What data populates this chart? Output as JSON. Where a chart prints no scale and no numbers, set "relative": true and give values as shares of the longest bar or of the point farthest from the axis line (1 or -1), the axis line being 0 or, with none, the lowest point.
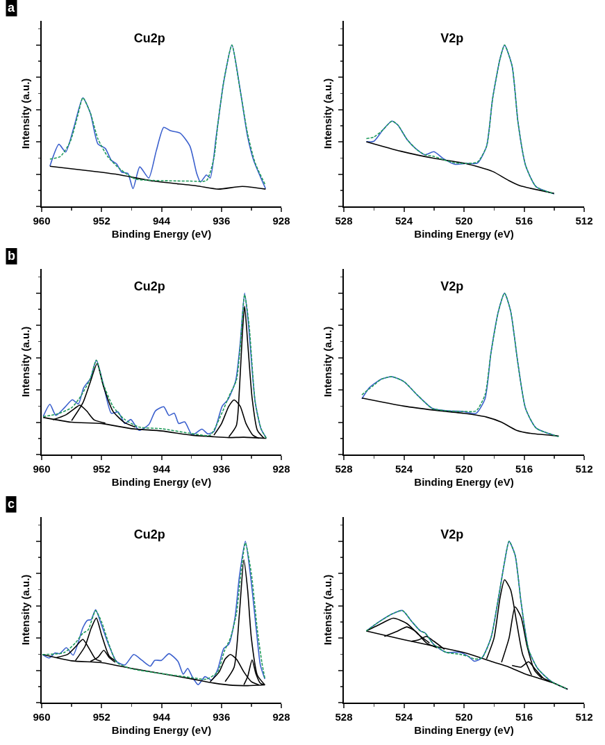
{
  "chart_data": [
    {
      "type": "line",
      "title": "Cu2p",
      "xlabel": "Binding Energy (eV)",
      "ylabel": "Intensity (a.u.)",
      "annotations": [
        "a"
      ],
      "relative": true,
      "xlim": [
        960,
        928
      ],
      "xticks": [
        960,
        952,
        944,
        936,
        928
      ],
      "tick_labels": "x",
      "grid": false,
      "marker": "none",
      "series": [
        {
          "color": "#3a5fcd",
          "x": [
            958.9,
            957.7,
            956.8,
            955.7,
            954.5,
            953.5,
            952.5,
            951.5,
            950.7,
            950.0,
            949.3,
            948.5,
            947.8,
            946.9,
            945.7,
            944.7,
            943.7,
            942.8,
            941.5,
            940.2,
            939.3,
            938.8,
            938.0,
            937.5,
            936.7,
            935.7,
            934.6,
            933.5,
            932.5,
            931.7,
            930.1
          ],
          "values": [
            0.25,
            0.385,
            0.337,
            0.49,
            0.673,
            0.578,
            0.388,
            0.359,
            0.286,
            0.264,
            0.212,
            0.205,
            0.11,
            0.245,
            0.176,
            0.344,
            0.49,
            0.469,
            0.454,
            0.373,
            0.205,
            0.151,
            0.195,
            0.176,
            0.432,
            0.769,
            1,
            0.725,
            0.432,
            0.286,
            0.11
          ]
        },
        {
          "color": "#1e9a5a",
          "line_style": "dashed",
          "x": [
            958.9,
            957.5,
            956.2,
            955.2,
            954.5,
            953.5,
            952.5,
            951.2,
            949.5,
            947.5,
            945.1,
            940.2,
            938.0,
            937.0,
            936.5,
            935.7,
            934.6,
            933.5,
            932.5,
            931.5,
            930.1
          ],
          "values": [
            0.293,
            0.31,
            0.4,
            0.56,
            0.673,
            0.58,
            0.42,
            0.31,
            0.23,
            0.17,
            0.161,
            0.157,
            0.16,
            0.3,
            0.5,
            0.77,
            1,
            0.72,
            0.45,
            0.27,
            0.13
          ]
        },
        {
          "color": "#000000",
          "x": [
            958.9,
            954.1,
            949.9,
            945.1,
            939.3,
            936.4,
            933.2,
            930.1
          ],
          "values": [
            0.249,
            0.223,
            0.198,
            0.157,
            0.127,
            0.107,
            0.124,
            0.107
          ]
        }
      ]
    },
    {
      "type": "line",
      "title": "V2p",
      "xlabel": "Binding Energy (eV)",
      "ylabel": "Intensity (a.u.)",
      "relative": true,
      "xlim": [
        528,
        512
      ],
      "xticks": [
        528,
        524,
        520,
        516,
        512
      ],
      "tick_labels": "x",
      "grid": false,
      "marker": "none",
      "series": [
        {
          "color": "#3a5fcd",
          "x": [
            526.5,
            526.0,
            525.4,
            524.8,
            524.4,
            523.8,
            523.2,
            522.6,
            522.0,
            521.4,
            520.6,
            519.9,
            519.1,
            518.5,
            518.1,
            517.6,
            517.3,
            516.8,
            516.4,
            515.9,
            515.2,
            514.0
          ],
          "values": [
            0.401,
            0.404,
            0.474,
            0.529,
            0.504,
            0.416,
            0.357,
            0.32,
            0.339,
            0.298,
            0.261,
            0.266,
            0.269,
            0.372,
            0.665,
            0.915,
            1,
            0.871,
            0.518,
            0.254,
            0.122,
            0.078
          ]
        },
        {
          "color": "#1e9a5a",
          "line_style": "dashed",
          "x": [
            526.5,
            526.0,
            525.4,
            524.8,
            524.4,
            523.8,
            523.2,
            522.6,
            522.0,
            521.4,
            520.6,
            519.9,
            519.1,
            518.5,
            518.1,
            517.6,
            517.3,
            516.8,
            516.4,
            515.9,
            515.2,
            514.0
          ],
          "values": [
            0.42,
            0.43,
            0.474,
            0.529,
            0.504,
            0.416,
            0.357,
            0.32,
            0.31,
            0.29,
            0.27,
            0.266,
            0.275,
            0.372,
            0.665,
            0.915,
            1,
            0.871,
            0.518,
            0.254,
            0.122,
            0.078
          ]
        },
        {
          "color": "#000000",
          "x": [
            526.5,
            524.2,
            522.0,
            519.9,
            518.1,
            517.0,
            516.3,
            514.0
          ],
          "values": [
            0.401,
            0.342,
            0.298,
            0.266,
            0.217,
            0.159,
            0.129,
            0.081
          ]
        }
      ]
    },
    {
      "type": "line",
      "title": "Cu2p",
      "xlabel": "Binding Energy (eV)",
      "ylabel": "Intensity (a.u.)",
      "annotations": [
        "b"
      ],
      "relative": true,
      "xlim": [
        960,
        928
      ],
      "xticks": [
        960,
        952,
        944,
        936,
        928
      ],
      "tick_labels": "x",
      "grid": false,
      "marker": "none",
      "series": [
        {
          "color": "#3a5fcd",
          "x": [
            959.8,
            958.9,
            958.1,
            957.0,
            955.9,
            955.1,
            954.4,
            953.5,
            952.7,
            951.8,
            950.7,
            949.8,
            948.9,
            948.1,
            947.0,
            945.7,
            944.8,
            943.7,
            943.0,
            942.3,
            941.7,
            940.9,
            939.9,
            938.6,
            937.8,
            937.0,
            935.9,
            935.1,
            934.1,
            933.5,
            932.9,
            932.4,
            931.5,
            930.7,
            930.0
          ],
          "values": [
            0.235,
            0.311,
            0.242,
            0.288,
            0.339,
            0.313,
            0.413,
            0.47,
            0.584,
            0.442,
            0.256,
            0.264,
            0.192,
            0.217,
            0.15,
            0.185,
            0.271,
            0.296,
            0.242,
            0.256,
            0.192,
            0.202,
            0.121,
            0.157,
            0.128,
            0.142,
            0.299,
            0.342,
            0.456,
            0.684,
            1,
            0.812,
            0.328,
            0.157,
            0.103
          ]
        },
        {
          "color": "#1e9a5a",
          "line_style": "dashed",
          "x": [
            959.8,
            958.0,
            956.0,
            954.8,
            953.5,
            952.7,
            951.8,
            950.5,
            949.0,
            947.0,
            944.0,
            940.0,
            937.5,
            936.0,
            935.0,
            934.0,
            933.5,
            932.9,
            932.3,
            931.5,
            930.7,
            930.0
          ],
          "values": [
            0.235,
            0.25,
            0.29,
            0.36,
            0.47,
            0.585,
            0.44,
            0.3,
            0.22,
            0.17,
            0.16,
            0.13,
            0.12,
            0.25,
            0.36,
            0.46,
            0.66,
            0.99,
            0.8,
            0.33,
            0.16,
            0.1
          ]
        },
        {
          "color": "#000000",
          "x": [
            959.8,
            956.0,
            952.0,
            948.0,
            944.0,
            940.0,
            937.0,
            935.0,
            933.0,
            930.0
          ],
          "values": [
            0.23,
            0.2,
            0.192,
            0.16,
            0.146,
            0.12,
            0.11,
            0.105,
            0.107,
            0.1
          ]
        },
        {
          "color": "#000000",
          "x": [
            958.5,
            956.8,
            955.6,
            954.9,
            954.0,
            953.0,
            951.5
          ],
          "values": [
            0.215,
            0.245,
            0.285,
            0.306,
            0.27,
            0.215,
            0.195
          ]
        },
        {
          "color": "#000000",
          "x": [
            956.0,
            954.5,
            953.5,
            952.6,
            951.8,
            950.5,
            949.0,
            947.5
          ],
          "values": [
            0.21,
            0.32,
            0.45,
            0.563,
            0.43,
            0.27,
            0.2,
            0.17
          ]
        },
        {
          "color": "#000000",
          "x": [
            937.0,
            936.0,
            935.0,
            934.3,
            933.5,
            932.7,
            931.8,
            931.0
          ],
          "values": [
            0.12,
            0.19,
            0.3,
            0.338,
            0.3,
            0.19,
            0.12,
            0.1
          ]
        },
        {
          "color": "#000000",
          "x": [
            935.0,
            934.0,
            933.6,
            933.2,
            932.9,
            932.5,
            931.9,
            931.2,
            930.3
          ],
          "values": [
            0.11,
            0.18,
            0.4,
            0.75,
            0.919,
            0.7,
            0.35,
            0.15,
            0.1
          ]
        }
      ]
    },
    {
      "type": "line",
      "title": "V2p",
      "xlabel": "Binding Energy (eV)",
      "ylabel": "Intensity (a.u.)",
      "relative": true,
      "xlim": [
        528,
        512
      ],
      "xticks": [
        528,
        524,
        520,
        516,
        512
      ],
      "tick_labels": "x",
      "grid": false,
      "marker": "none",
      "series": [
        {
          "color": "#3a5fcd",
          "x": [
            526.8,
            526.3,
            525.5,
            524.8,
            524.0,
            523.1,
            522.1,
            521.0,
            520.1,
            519.2,
            518.6,
            518.2,
            517.7,
            517.3,
            516.9,
            516.4,
            515.9,
            515.2,
            513.7
          ],
          "values": [
            0.345,
            0.414,
            0.467,
            0.482,
            0.452,
            0.368,
            0.285,
            0.27,
            0.267,
            0.255,
            0.345,
            0.633,
            0.891,
            1,
            0.891,
            0.558,
            0.285,
            0.164,
            0.111
          ]
        },
        {
          "color": "#1e9a5a",
          "line_style": "dashed",
          "x": [
            526.8,
            526.0,
            525.5,
            524.8,
            524.0,
            523.1,
            522.1,
            521.0,
            520.1,
            519.2,
            518.6,
            518.2,
            517.7,
            517.3,
            516.9,
            516.4,
            515.9,
            515.2,
            513.7
          ],
          "values": [
            0.37,
            0.43,
            0.467,
            0.482,
            0.452,
            0.368,
            0.285,
            0.27,
            0.267,
            0.27,
            0.37,
            0.633,
            0.891,
            1,
            0.891,
            0.558,
            0.285,
            0.164,
            0.111
          ]
        },
        {
          "color": "#000000",
          "x": [
            526.8,
            524.0,
            522.0,
            520.0,
            518.5,
            517.5,
            516.5,
            515.5,
            513.7
          ],
          "values": [
            0.35,
            0.3,
            0.275,
            0.255,
            0.232,
            0.2,
            0.15,
            0.13,
            0.115
          ]
        }
      ]
    },
    {
      "type": "line",
      "title": "Cu2p",
      "xlabel": "Binding Energy (eV)",
      "ylabel": "Intensity (a.u.)",
      "annotations": [
        "c"
      ],
      "relative": true,
      "xlim": [
        960,
        928
      ],
      "xticks": [
        960,
        952,
        944,
        936,
        928
      ],
      "tick_labels": "x",
      "grid": false,
      "marker": "none",
      "series": [
        {
          "color": "#3a5fcd",
          "x": [
            959.9,
            959.0,
            958.2,
            957.6,
            956.7,
            955.8,
            954.5,
            953.9,
            953.4,
            952.8,
            952.1,
            951.1,
            950.0,
            948.9,
            947.7,
            946.6,
            945.5,
            944.9,
            944.0,
            943.0,
            941.8,
            941.1,
            940.5,
            939.9,
            939.1,
            938.2,
            937.3,
            936.5,
            935.7,
            935.0,
            934.2,
            933.6,
            932.8,
            932.1,
            931.3,
            930.8,
            930.2
          ],
          "values": [
            0.298,
            0.277,
            0.308,
            0.303,
            0.34,
            0.294,
            0.464,
            0.51,
            0.514,
            0.576,
            0.493,
            0.363,
            0.255,
            0.233,
            0.298,
            0.262,
            0.226,
            0.262,
            0.262,
            0.303,
            0.255,
            0.176,
            0.212,
            0.161,
            0.111,
            0.161,
            0.14,
            0.205,
            0.334,
            0.363,
            0.522,
            0.781,
            1,
            0.781,
            0.435,
            0.233,
            0.147
          ]
        },
        {
          "color": "#1e9a5a",
          "line_style": "dashed",
          "x": [
            959.9,
            957.0,
            955.5,
            954.5,
            953.8,
            952.8,
            952.0,
            951.0,
            950.0,
            948.0,
            944.0,
            940.0,
            938.0,
            936.5,
            935.6,
            934.8,
            934.0,
            933.4,
            932.8,
            932.0,
            931.2,
            930.6,
            930.2
          ],
          "values": [
            0.298,
            0.31,
            0.37,
            0.43,
            0.45,
            0.57,
            0.5,
            0.36,
            0.25,
            0.21,
            0.18,
            0.155,
            0.145,
            0.19,
            0.32,
            0.4,
            0.55,
            0.8,
            0.99,
            0.8,
            0.45,
            0.25,
            0.15
          ]
        },
        {
          "color": "#000000",
          "x": [
            959.9,
            956.0,
            952.0,
            948.0,
            944.0,
            940.0,
            937.0,
            934.5,
            932.5,
            930.2
          ],
          "values": [
            0.298,
            0.259,
            0.248,
            0.212,
            0.18,
            0.147,
            0.121,
            0.107,
            0.105,
            0.11
          ]
        },
        {
          "color": "#000000",
          "x": [
            958.0,
            956.5,
            955.4,
            954.5,
            953.6,
            952.8,
            952.0
          ],
          "values": [
            0.28,
            0.3,
            0.35,
            0.392,
            0.33,
            0.27,
            0.255
          ]
        },
        {
          "color": "#000000",
          "x": [
            955.5,
            954.2,
            953.4,
            952.7,
            952.0,
            951.0,
            950.0
          ],
          "values": [
            0.26,
            0.35,
            0.46,
            0.524,
            0.42,
            0.29,
            0.255
          ]
        },
        {
          "color": "#000000",
          "x": [
            953.5,
            952.5,
            951.7,
            951.0,
            950.2
          ],
          "values": [
            0.255,
            0.28,
            0.324,
            0.28,
            0.25
          ]
        },
        {
          "color": "#000000",
          "x": [
            937.5,
            936.3,
            935.5,
            934.8,
            934.0,
            933.0,
            932.0,
            931.0
          ],
          "values": [
            0.13,
            0.19,
            0.27,
            0.298,
            0.27,
            0.19,
            0.13,
            0.11
          ]
        },
        {
          "color": "#000000",
          "x": [
            935.5,
            934.3,
            933.6,
            933.0,
            932.5,
            932.0,
            931.2,
            930.2
          ],
          "values": [
            0.13,
            0.22,
            0.55,
            0.885,
            0.7,
            0.4,
            0.17,
            0.11
          ]
        },
        {
          "color": "#000000",
          "x": [
            933.0,
            932.5,
            931.9,
            931.4,
            930.8,
            930.2
          ],
          "values": [
            0.11,
            0.16,
            0.265,
            0.18,
            0.12,
            0.11
          ]
        }
      ]
    },
    {
      "type": "line",
      "title": "V2p",
      "xlabel": "Binding Energy (eV)",
      "ylabel": "Intensity (a.u.)",
      "relative": true,
      "xlim": [
        528,
        512
      ],
      "xticks": [
        528,
        524,
        520,
        516,
        512
      ],
      "tick_labels": "x",
      "grid": false,
      "marker": "none",
      "series": [
        {
          "color": "#3a5fcd",
          "x": [
            526.5,
            525.7,
            524.8,
            524.1,
            523.5,
            522.9,
            522.6,
            522.0,
            521.2,
            520.3,
            519.7,
            519.3,
            518.8,
            518.2,
            517.7,
            517.3,
            517.0,
            516.6,
            516.2,
            515.7,
            515.1,
            514.2,
            513.1
          ],
          "values": [
            0.444,
            0.498,
            0.549,
            0.571,
            0.505,
            0.444,
            0.432,
            0.359,
            0.312,
            0.312,
            0.286,
            0.256,
            0.278,
            0.403,
            0.652,
            0.871,
            1,
            0.915,
            0.622,
            0.329,
            0.212,
            0.132,
            0.083
          ]
        },
        {
          "color": "#1e9a5a",
          "line_style": "dashed",
          "x": [
            526.5,
            525.7,
            524.8,
            524.1,
            523.5,
            522.9,
            522.6,
            522.0,
            521.2,
            520.3,
            519.7,
            519.3,
            518.8,
            518.2,
            517.7,
            517.3,
            517.0,
            516.6,
            516.2,
            515.7,
            515.1,
            514.2,
            513.1
          ],
          "values": [
            0.444,
            0.498,
            0.549,
            0.571,
            0.505,
            0.444,
            0.432,
            0.359,
            0.312,
            0.3,
            0.286,
            0.27,
            0.278,
            0.403,
            0.652,
            0.871,
            1,
            0.915,
            0.622,
            0.329,
            0.212,
            0.132,
            0.083
          ]
        },
        {
          "color": "#000000",
          "x": [
            526.5,
            524.0,
            522.0,
            520.0,
            518.0,
            517.0,
            516.0,
            515.0,
            514.0,
            513.1
          ],
          "values": [
            0.444,
            0.39,
            0.35,
            0.31,
            0.25,
            0.22,
            0.18,
            0.15,
            0.12,
            0.083
          ]
        },
        {
          "color": "#000000",
          "x": [
            526.5,
            525.5,
            524.7,
            523.8,
            523.0,
            522.3
          ],
          "values": [
            0.444,
            0.49,
            0.523,
            0.49,
            0.42,
            0.37
          ]
        },
        {
          "color": "#000000",
          "x": [
            525.3,
            524.5,
            523.8,
            523.2,
            522.5,
            521.8
          ],
          "values": [
            0.41,
            0.44,
            0.469,
            0.44,
            0.37,
            0.34
          ]
        },
        {
          "color": "#000000",
          "x": [
            523.5,
            523.0,
            522.5,
            522.0,
            521.3
          ],
          "values": [
            0.38,
            0.39,
            0.41,
            0.38,
            0.33
          ]
        },
        {
          "color": "#000000",
          "x": [
            518.5,
            518.0,
            517.6,
            517.3,
            516.9,
            516.5,
            516.1,
            515.5
          ],
          "values": [
            0.27,
            0.4,
            0.65,
            0.761,
            0.7,
            0.5,
            0.3,
            0.17
          ]
        },
        {
          "color": "#000000",
          "x": [
            517.5,
            517.0,
            516.6,
            516.2,
            515.8,
            515.3,
            514.8
          ],
          "values": [
            0.25,
            0.4,
            0.593,
            0.53,
            0.35,
            0.2,
            0.15
          ]
        },
        {
          "color": "#000000",
          "x": [
            516.8,
            516.2,
            515.7,
            515.2,
            514.7,
            514.2
          ],
          "values": [
            0.23,
            0.22,
            0.253,
            0.2,
            0.15,
            0.13
          ]
        }
      ]
    }
  ]
}
